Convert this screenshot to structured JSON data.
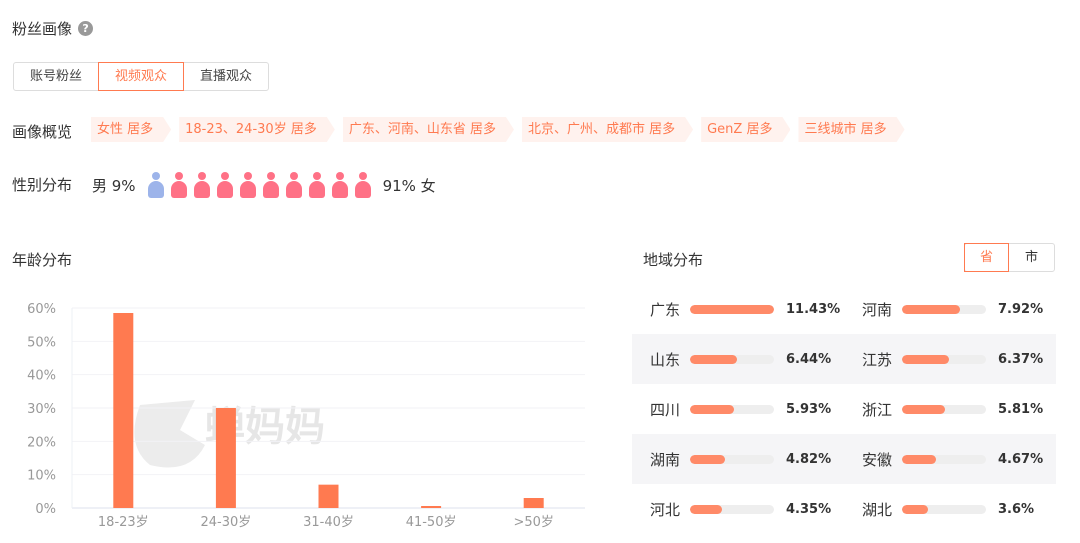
{
  "header": {
    "title": "粉丝画像",
    "help_icon": "question-circle-icon"
  },
  "tabs": [
    {
      "label": "账号粉丝",
      "active": false
    },
    {
      "label": "视频观众",
      "active": true
    },
    {
      "label": "直播观众",
      "active": false
    }
  ],
  "overview": {
    "label": "画像概览",
    "tags": [
      "女性 居多",
      "18-23、24-30岁 居多",
      "广东、河南、山东省 居多",
      "北京、广州、成都市 居多",
      "GenZ 居多",
      "三线城市 居多"
    ]
  },
  "gender": {
    "label": "性别分布",
    "male_label": "男 9%",
    "female_label": "91% 女",
    "male_percent": 9,
    "female_percent": 91,
    "male_color": "#9db4ea",
    "female_color": "#ff7186"
  },
  "age": {
    "title": "年龄分布"
  },
  "region": {
    "title": "地域分布",
    "toggle": [
      {
        "label": "省",
        "active": true
      },
      {
        "label": "市",
        "active": false
      }
    ],
    "items": [
      {
        "name": "广东",
        "value": "11.43%",
        "pct": 11.43
      },
      {
        "name": "河南",
        "value": "7.92%",
        "pct": 7.92
      },
      {
        "name": "山东",
        "value": "6.44%",
        "pct": 6.44
      },
      {
        "name": "江苏",
        "value": "6.37%",
        "pct": 6.37
      },
      {
        "name": "四川",
        "value": "5.93%",
        "pct": 5.93
      },
      {
        "name": "浙江",
        "value": "5.81%",
        "pct": 5.81
      },
      {
        "name": "湖南",
        "value": "4.82%",
        "pct": 4.82
      },
      {
        "name": "安徽",
        "value": "4.67%",
        "pct": 4.67
      },
      {
        "name": "河北",
        "value": "4.35%",
        "pct": 4.35
      },
      {
        "name": "湖北",
        "value": "3.6%",
        "pct": 3.6
      }
    ]
  },
  "watermark": "蝉妈妈",
  "chart_data": {
    "type": "bar",
    "title": "年龄分布",
    "categories": [
      "18-23岁",
      "24-30岁",
      "31-40岁",
      "41-50岁",
      ">50岁"
    ],
    "values": [
      58.5,
      30,
      7,
      0.6,
      3
    ],
    "ylim": [
      0,
      60
    ],
    "yticks": [
      "0%",
      "10%",
      "20%",
      "30%",
      "40%",
      "50%",
      "60%"
    ],
    "grid": true,
    "color": "#ff7a50"
  }
}
